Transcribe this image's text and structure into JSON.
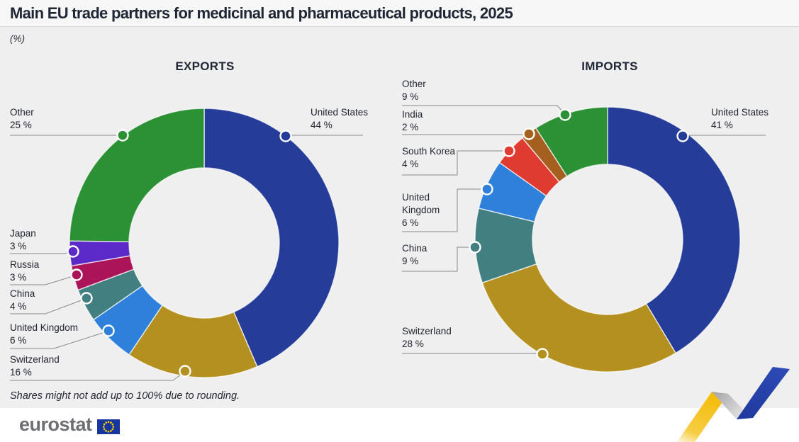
{
  "title": "Main EU trade partners for medicinal and pharmaceutical products, 2025",
  "subtitle": "(%)",
  "footnote": "Shares might not add up to 100% due to rounding.",
  "brand": {
    "logo_text": "eurostat",
    "flag_blue": "#17369b",
    "star_yellow": "#ffcc00"
  },
  "colors": {
    "background": "#efeff0",
    "footer_band": "#ffffff",
    "label_text": "#20242e",
    "leader_line": "#8a8a8a",
    "ribbon_yellow": "#f3bd0b",
    "ribbon_silver": "#b0b0b4",
    "ribbon_blue": "#2744ae"
  },
  "chart_data": [
    {
      "type": "donut",
      "title": "EXPORTS",
      "unit": "%",
      "legend_position": "callout-labels",
      "categories": [
        "United States",
        "Switzerland",
        "United Kingdom",
        "China",
        "Russia",
        "Japan",
        "Other"
      ],
      "values": [
        44,
        16,
        6,
        4,
        3,
        3,
        25
      ],
      "slices": [
        {
          "label": "United States",
          "value": 44,
          "pct_label": "44 %",
          "color": "#253d99"
        },
        {
          "label": "Switzerland",
          "value": 16,
          "pct_label": "16 %",
          "color": "#b3901f"
        },
        {
          "label": "United Kingdom",
          "value": 6,
          "pct_label": "6 %",
          "color": "#2f80da"
        },
        {
          "label": "China",
          "value": 4,
          "pct_label": "4 %",
          "color": "#427f80"
        },
        {
          "label": "Russia",
          "value": 3,
          "pct_label": "3 %",
          "color": "#ac1459"
        },
        {
          "label": "Japan",
          "value": 3,
          "pct_label": "3 %",
          "color": "#5c2ac8"
        },
        {
          "label": "Other",
          "value": 25,
          "pct_label": "25 %",
          "color": "#2b9134"
        }
      ]
    },
    {
      "type": "donut",
      "title": "IMPORTS",
      "unit": "%",
      "legend_position": "callout-labels",
      "categories": [
        "United States",
        "Switzerland",
        "China",
        "United Kingdom",
        "South Korea",
        "India",
        "Other"
      ],
      "values": [
        41,
        28,
        9,
        6,
        4,
        2,
        9
      ],
      "slices": [
        {
          "label": "United States",
          "value": 41,
          "pct_label": "41 %",
          "color": "#253d99"
        },
        {
          "label": "Switzerland",
          "value": 28,
          "pct_label": "28 %",
          "color": "#b3901f"
        },
        {
          "label": "China",
          "value": 9,
          "pct_label": "9 %",
          "color": "#427f80"
        },
        {
          "label": "United Kingdom",
          "value": 6,
          "pct_label": "6 %",
          "color": "#2f80da"
        },
        {
          "label": "South Korea",
          "value": 4,
          "pct_label": "4 %",
          "color": "#df3b31"
        },
        {
          "label": "India",
          "value": 2,
          "pct_label": "2 %",
          "color": "#a5601f"
        },
        {
          "label": "Other",
          "value": 9,
          "pct_label": "9 %",
          "color": "#2b9134"
        }
      ]
    }
  ]
}
